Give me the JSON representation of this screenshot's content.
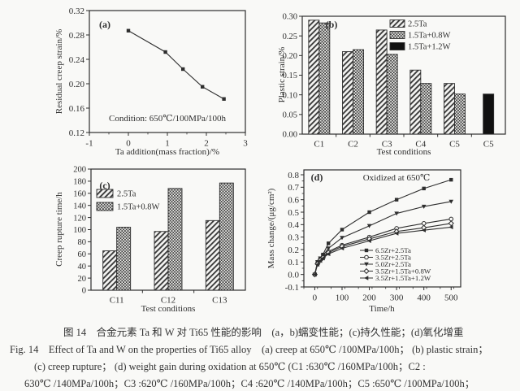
{
  "colors": {
    "ink": "#2e2e2e",
    "paper": "#f9f9f7",
    "hatch": "#3d3d3d",
    "hatch_bg": "#f4f4f2",
    "black": "#111111"
  },
  "figure_caption": {
    "line1": "图 14　合金元素 Ta 和 W 对 Ti65 性能的影响　(a，b)蠕变性能；(c)持久性能；(d)氧化增重",
    "line2": "Fig. 14　Effect of Ta and W on the properties of Ti65 alloy　(a) creep at 650℃ /100MPa/100h； (b) plastic strain；",
    "line3": "(c) creep rupture； (d) weight gain during oxidation at 650℃ (C1 :630℃ /160MPa/100h；C2 :",
    "line4": "630℃ /140MPa/100h；C3 :620℃ /160MPa/100h；C4 :620℃ /140MPa/100h；C5 :650℃ /100MPa/100h；"
  },
  "chart_data": [
    {
      "id": "a",
      "type": "line",
      "panel_label": "(a)",
      "title": "",
      "annotation": "Condition: 650℃/100MPa/100h",
      "xlabel": "Ta addition(mass fraction)/%",
      "ylabel": "Residual creep strain/%",
      "xlim": [
        -1,
        3
      ],
      "ylim": [
        0.12,
        0.32
      ],
      "xticks": [
        "-1",
        "0",
        "1",
        "2",
        "3"
      ],
      "yticks": [
        "0.12",
        "0.16",
        "0.20",
        "0.24",
        "0.28",
        "0.32"
      ],
      "xminor_step": 0.5,
      "grid": false,
      "legend_position": "none",
      "series": [
        {
          "name": "residual-creep-strain",
          "marker": "square",
          "x": [
            0,
            0.95,
            1.4,
            1.9,
            2.45
          ],
          "y": [
            0.287,
            0.252,
            0.224,
            0.195,
            0.175
          ]
        }
      ]
    },
    {
      "id": "b",
      "type": "bar",
      "panel_label": "(b)",
      "xlabel": "Test conditions",
      "ylabel": "Plastic strain/%",
      "categories": [
        "C1",
        "C2",
        "C3",
        "C4",
        "C5",
        "C5"
      ],
      "ylim": [
        0,
        0.3
      ],
      "yticks": [
        "0.00",
        "0.05",
        "0.10",
        "0.15",
        "0.20",
        "0.25",
        "0.30"
      ],
      "grid": false,
      "legend_position": "top-right",
      "series": [
        {
          "name": "2.5Ta",
          "pattern": "diag",
          "values": [
            0.29,
            0.21,
            0.265,
            0.163,
            0.129,
            null
          ]
        },
        {
          "name": "1.5Ta+0.8W",
          "pattern": "cross",
          "values": [
            0.283,
            0.215,
            0.203,
            0.129,
            0.102,
            null
          ]
        },
        {
          "name": "1.5Ta+1.2W",
          "pattern": "solid",
          "values": [
            null,
            null,
            null,
            null,
            null,
            0.102
          ]
        }
      ]
    },
    {
      "id": "c",
      "type": "bar",
      "panel_label": "(c)",
      "xlabel": "Test conditions",
      "ylabel": "Creep rupture time/h",
      "categories": [
        "C11",
        "C12",
        "C13"
      ],
      "ylim": [
        0,
        200
      ],
      "yticks": [
        "0",
        "20",
        "40",
        "60",
        "80",
        "100",
        "120",
        "140",
        "160",
        "180",
        "200"
      ],
      "grid": false,
      "legend_position": "upper-left",
      "series": [
        {
          "name": "2.5Ta",
          "pattern": "diag",
          "values": [
            65,
            97,
            115
          ]
        },
        {
          "name": "1.5Ta+0.8W",
          "pattern": "cross",
          "values": [
            104,
            168,
            177
          ]
        }
      ]
    },
    {
      "id": "d",
      "type": "line",
      "panel_label": "(d)",
      "annotation": "Oxidized at 650℃",
      "xlabel": "Time/h",
      "ylabel": "Mass change/(μg/cm²)",
      "xlim": [
        -40,
        535
      ],
      "ylim": [
        -0.1,
        0.8
      ],
      "xticks": [
        "0",
        "100",
        "200",
        "300",
        "400",
        "500"
      ],
      "yticks": [
        "-0.1",
        "0.0",
        "0.1",
        "0.2",
        "0.3",
        "0.4",
        "0.5",
        "0.6",
        "0.7",
        "0.8"
      ],
      "xminor_step": 50,
      "yminor_step": 0.05,
      "grid": false,
      "legend_position": "bottom-right",
      "x": [
        0,
        10,
        20,
        30,
        50,
        100,
        200,
        300,
        400,
        500
      ],
      "series": [
        {
          "name": "6.5Zr+2.5Ta",
          "marker": "square",
          "y": [
            0,
            0.1,
            0.13,
            0.16,
            0.25,
            0.36,
            0.5,
            0.6,
            0.69,
            0.76
          ]
        },
        {
          "name": "3.5Zr+2.5Ta",
          "marker": "circle-open",
          "y": [
            0,
            0.09,
            0.12,
            0.14,
            0.185,
            0.235,
            0.3,
            0.37,
            0.41,
            0.445
          ]
        },
        {
          "name": "5.0Zr+2.5Ta",
          "marker": "triangle-down",
          "y": [
            0,
            0.1,
            0.13,
            0.15,
            0.21,
            0.295,
            0.39,
            0.49,
            0.545,
            0.585
          ]
        },
        {
          "name": "3.5Zr+1.5Ta+0.8W",
          "marker": "diamond-open",
          "y": [
            0,
            0.085,
            0.115,
            0.135,
            0.175,
            0.225,
            0.285,
            0.345,
            0.375,
            0.41
          ]
        },
        {
          "name": "3.5Zr+1.5Ta+1.2W",
          "marker": "triangle-left",
          "y": [
            0,
            0.08,
            0.11,
            0.13,
            0.165,
            0.21,
            0.27,
            0.33,
            0.355,
            0.38
          ]
        }
      ]
    }
  ]
}
